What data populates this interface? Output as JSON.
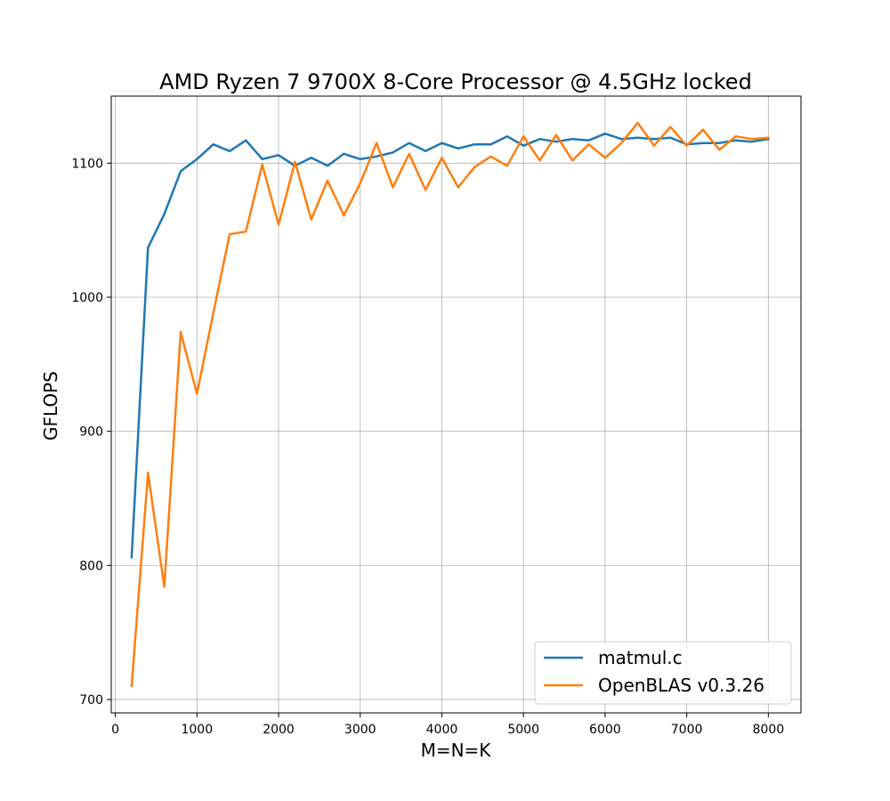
{
  "chart_data": {
    "type": "line",
    "title": "AMD Ryzen 7 9700X 8-Core Processor @ 4.5GHz locked",
    "xlabel": "M=N=K",
    "ylabel": "GFLOPS",
    "xlim": [
      -50,
      8400
    ],
    "ylim": [
      690,
      1150
    ],
    "xticks": [
      0,
      1000,
      2000,
      3000,
      4000,
      5000,
      6000,
      7000,
      8000
    ],
    "yticks": [
      700,
      800,
      900,
      1000,
      1100
    ],
    "grid": true,
    "legend_position": "lower-right",
    "x": [
      200,
      400,
      600,
      800,
      1000,
      1200,
      1400,
      1600,
      1800,
      2000,
      2200,
      2400,
      2600,
      2800,
      3000,
      3200,
      3400,
      3600,
      3800,
      4000,
      4200,
      4400,
      4600,
      4800,
      5000,
      5200,
      5400,
      5600,
      5800,
      6000,
      6200,
      6400,
      6600,
      6800,
      7000,
      7200,
      7400,
      7600,
      7800,
      8000
    ],
    "series": [
      {
        "name": "matmul.c",
        "color": "#1f77b4",
        "values": [
          806,
          1037,
          1062,
          1094,
          1103,
          1114,
          1109,
          1117,
          1103,
          1106,
          1098,
          1104,
          1098,
          1107,
          1103,
          1105,
          1108,
          1115,
          1109,
          1115,
          1111,
          1114,
          1114,
          1120,
          1113,
          1118,
          1116,
          1118,
          1117,
          1122,
          1118,
          1119,
          1118,
          1119,
          1114,
          1115,
          1115,
          1117,
          1116,
          1118
        ]
      },
      {
        "name": "OpenBLAS v0.3.26",
        "color": "#ff7f0e",
        "values": [
          710,
          869,
          784,
          974,
          928,
          988,
          1047,
          1049,
          1099,
          1054,
          1101,
          1058,
          1087,
          1061,
          1085,
          1115,
          1082,
          1107,
          1080,
          1104,
          1082,
          1097,
          1105,
          1098,
          1120,
          1102,
          1121,
          1102,
          1114,
          1104,
          1115,
          1130,
          1113,
          1127,
          1113,
          1125,
          1110,
          1120,
          1118,
          1119
        ]
      }
    ]
  }
}
